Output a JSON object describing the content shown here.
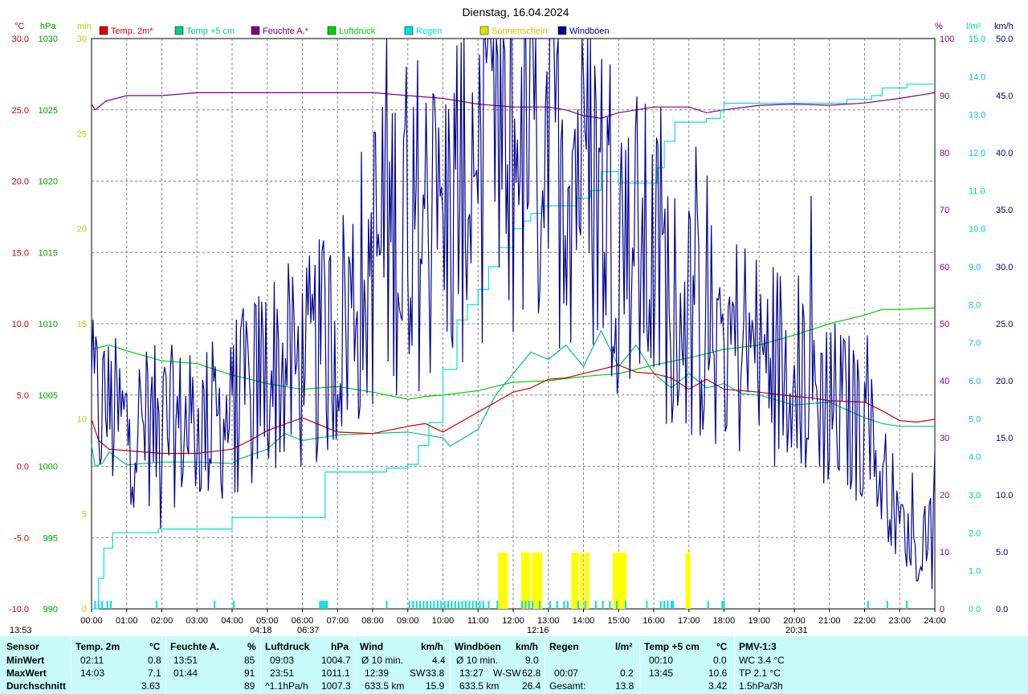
{
  "chart_data": {
    "type": "line",
    "title": "Dienstag, 16.04.2024",
    "x_ticks": [
      "00:00",
      "01:00",
      "02:00",
      "03:00",
      "04:00",
      "05:00",
      "06:00",
      "07:00",
      "08:00",
      "09:00",
      "10:00",
      "11:00",
      "12:00",
      "13:00",
      "14:00",
      "15:00",
      "16:00",
      "17:00",
      "18:00",
      "19:00",
      "20:00",
      "21:00",
      "22:00",
      "23:00",
      "24:00"
    ],
    "xlim_hours": [
      0,
      24
    ],
    "grid": true,
    "axes": {
      "temp": {
        "unit": "°C",
        "range": [
          -10,
          30
        ],
        "ticks": [
          "30.0",
          "25.0",
          "20.0",
          "15.0",
          "10.0",
          "5.0",
          "0.0",
          "-5.0",
          "-10.0"
        ],
        "color": "#d00000"
      },
      "pressure": {
        "unit": "hPa",
        "range": [
          990,
          1030
        ],
        "ticks": [
          "1030",
          "1025",
          "1020",
          "1015",
          "1010",
          "1005",
          "1000",
          "995",
          "990"
        ],
        "color": "#00a000"
      },
      "sunshine": {
        "unit": "min",
        "range": [
          0,
          30
        ],
        "ticks": [
          "30",
          "25",
          "20",
          "15",
          "10",
          "5",
          "0"
        ],
        "color": "#c8c800"
      },
      "humidity": {
        "unit": "%",
        "range": [
          0,
          100
        ],
        "ticks": [
          "100",
          "90",
          "80",
          "70",
          "60",
          "50",
          "40",
          "30",
          "20",
          "10",
          "0"
        ],
        "color": "#800080"
      },
      "rain": {
        "unit": "l/m²",
        "range": [
          0,
          15
        ],
        "ticks": [
          "15.0",
          "14.0",
          "13.0",
          "12.0",
          "11.0",
          "10.0",
          "9.0",
          "8.0",
          "7.0",
          "6.0",
          "5.0",
          "4.0",
          "3.0",
          "2.0",
          "1.0",
          "0.0"
        ],
        "color": "#00c8c8"
      },
      "wind": {
        "unit": "km/h",
        "range": [
          0,
          50
        ],
        "ticks": [
          "50.0",
          "45.0",
          "40.0",
          "35.0",
          "30.0",
          "25.0",
          "20.0",
          "15.0",
          "10.0",
          "5.0",
          "0.0"
        ],
        "color": "#000080"
      }
    },
    "legend": [
      {
        "name": "Temp. 2m*",
        "color": "#e00000"
      },
      {
        "name": "Temp +5 cm",
        "color": "#00d080"
      },
      {
        "name": "Feuchte A.*",
        "color": "#800080"
      },
      {
        "name": "Luftdruck",
        "color": "#00d000"
      },
      {
        "name": "Regen",
        "color": "#00e0e0"
      },
      {
        "name": "Sonnenschein",
        "color": "#e0e000"
      },
      {
        "name": "Windböen",
        "color": "#000090"
      }
    ],
    "series": [
      {
        "name": "Temp. 2m*",
        "axis": "temp",
        "color": "#d00000",
        "x": [
          0,
          0.2,
          0.5,
          1,
          2,
          3,
          4,
          4.5,
          5,
          6,
          7,
          8,
          9,
          9.5,
          10,
          11,
          12,
          12.5,
          13,
          13.5,
          14,
          14.5,
          15,
          15.5,
          16,
          16.5,
          17,
          17.5,
          18,
          19,
          20,
          20.5,
          21,
          22,
          22.5,
          23,
          23.5,
          24
        ],
        "y": [
          3.3,
          1.8,
          1.2,
          1.1,
          0.9,
          0.9,
          1.2,
          1.8,
          2.5,
          3.4,
          2.4,
          2.3,
          2.8,
          3,
          2.4,
          3.8,
          5.2,
          5.5,
          6.1,
          6.2,
          6.5,
          6.8,
          7.1,
          6.6,
          6.5,
          6.2,
          5.4,
          6.1,
          5.4,
          5.2,
          4.9,
          4.8,
          4.6,
          4.5,
          3.9,
          3.2,
          3.1,
          3.3
        ]
      },
      {
        "name": "Temp +5 cm",
        "axis": "temp",
        "color": "#00c080",
        "x": [
          0,
          0.1,
          0.3,
          0.5,
          1,
          2,
          3,
          4,
          4.2,
          5,
          5.5,
          6,
          7,
          8,
          9,
          10,
          10.2,
          11,
          11.5,
          12,
          12.5,
          13,
          13.5,
          14,
          14.5,
          15,
          15.5,
          16,
          16.5,
          17,
          17.5,
          18,
          18.5,
          19,
          20,
          21,
          22,
          22.5,
          23,
          24
        ],
        "y": [
          1.5,
          0,
          0.2,
          1.0,
          0.1,
          0.3,
          0.3,
          0.2,
          0.5,
          1.2,
          2.3,
          1.8,
          2.2,
          2.3,
          2.4,
          2.0,
          1.4,
          2.6,
          5.0,
          6.5,
          8.0,
          7.5,
          8.5,
          7.0,
          9.5,
          7.0,
          8.5,
          6.5,
          5.5,
          6.5,
          5.5,
          5.8,
          5.1,
          5.0,
          4.3,
          4.5,
          3.4,
          3.0,
          2.8,
          2.8
        ]
      },
      {
        "name": "Feuchte A.*",
        "axis": "humidity",
        "color": "#800080",
        "x": [
          0,
          0.1,
          0.4,
          1,
          2,
          3,
          4,
          5,
          6,
          7,
          8,
          9,
          10,
          11,
          12,
          13,
          13.5,
          14,
          14.5,
          15,
          15.5,
          16,
          16.5,
          17,
          17.5,
          18,
          19,
          20,
          21,
          22,
          23,
          24
        ],
        "y": [
          88.5,
          87.5,
          89,
          90,
          90,
          90.5,
          90.5,
          90.5,
          90.5,
          90.5,
          90.5,
          90,
          89.5,
          88.5,
          88,
          88,
          87.5,
          86.5,
          86,
          87,
          87.5,
          88,
          88,
          88,
          87,
          87.5,
          88.3,
          88.5,
          88.3,
          88.7,
          89.5,
          90.5
        ]
      },
      {
        "name": "Luftdruck",
        "axis": "pressure",
        "color": "#00d000",
        "x": [
          0,
          0.5,
          1,
          2,
          3,
          4,
          5,
          6,
          7,
          8,
          9,
          9.5,
          10,
          11,
          12,
          13,
          14,
          15,
          16,
          17,
          18,
          19,
          20,
          21,
          22,
          22.5,
          23,
          24
        ],
        "y": [
          1008.2,
          1008.5,
          1008.1,
          1007.4,
          1007.2,
          1006.4,
          1005.8,
          1005.4,
          1005.6,
          1005.2,
          1004.7,
          1004.9,
          1005.0,
          1005.3,
          1005.9,
          1006.0,
          1006.3,
          1006.5,
          1007.1,
          1007.6,
          1008.2,
          1008.5,
          1009.2,
          1010.0,
          1010.6,
          1011.0,
          1011.0,
          1011.1
        ]
      },
      {
        "name": "Regen",
        "axis": "rain",
        "color": "#00e0e0",
        "step": true,
        "x": [
          0,
          0.2,
          0.35,
          0.6,
          1.9,
          4.0,
          6.5,
          6.65,
          8.0,
          8.4,
          9.0,
          9.3,
          9.6,
          10.0,
          10.4,
          10.7,
          11.0,
          11.3,
          11.6,
          12.0,
          12.3,
          12.5,
          12.8,
          13.1,
          13.5,
          13.8,
          14.2,
          14.5,
          15.0,
          15.8,
          16.1,
          16.3,
          16.6,
          17.0,
          17.5,
          17.9,
          18.0,
          20.5,
          21.0,
          21.5,
          22.0,
          22.2,
          22.5,
          23.2,
          24
        ],
        "y": [
          0,
          0.8,
          1.6,
          2.0,
          2.1,
          2.4,
          2.4,
          3.6,
          3.6,
          3.7,
          3.8,
          4.3,
          4.9,
          6.3,
          7.6,
          8.0,
          8.4,
          9.0,
          9.5,
          10.0,
          10.2,
          10.4,
          10.6,
          10.6,
          10.6,
          10.8,
          11.0,
          11.5,
          11.2,
          11.2,
          11.6,
          12.3,
          12.8,
          12.8,
          12.9,
          13.1,
          13.3,
          13.3,
          13.3,
          13.4,
          13.4,
          13.5,
          13.7,
          13.8,
          13.8
        ]
      },
      {
        "name": "Windböen",
        "axis": "wind",
        "color": "#000090",
        "noise": true,
        "x": [
          0,
          1,
          2,
          3,
          4,
          5,
          6,
          7,
          8,
          9,
          10,
          11,
          12,
          13,
          14,
          15,
          16,
          17,
          18,
          19,
          20,
          21,
          22,
          22.5,
          23,
          23.5,
          24
        ],
        "y": [
          18,
          16,
          16,
          16,
          17,
          21,
          21,
          24,
          31,
          35,
          33,
          42,
          40,
          42,
          40,
          34,
          30,
          26,
          24,
          22,
          21,
          18,
          16,
          12,
          8,
          4,
          10
        ]
      }
    ],
    "sun_bars_hours": [
      11.62,
      11.68,
      11.75,
      11.8,
      12.27,
      12.32,
      12.38,
      12.45,
      12.58,
      12.65,
      12.72,
      12.78,
      13.7,
      13.75,
      13.82,
      13.95,
      14.08,
      14.12,
      14.88,
      14.95,
      15.0,
      15.05,
      15.12,
      15.18,
      16.95,
      17.0
    ],
    "rain_ticks_hours": [
      0.1,
      0.2,
      0.3,
      0.45,
      0.55,
      1.85,
      3.5,
      4.05,
      6.5,
      6.55,
      6.6,
      6.65,
      6.7,
      8.4,
      9.05,
      9.15,
      9.25,
      9.35,
      9.45,
      9.55,
      9.65,
      9.75,
      9.85,
      9.95,
      10.05,
      10.15,
      10.25,
      10.35,
      10.45,
      10.55,
      10.65,
      10.75,
      10.85,
      10.95,
      11.05,
      11.15,
      11.3,
      11.55,
      12.25,
      12.35,
      12.45,
      12.55,
      12.75,
      13.05,
      13.25,
      13.45,
      13.55,
      13.85,
      14.05,
      14.35,
      14.55,
      14.75,
      14.95,
      15.2,
      15.8,
      16.2,
      16.3,
      16.4,
      16.5,
      16.55,
      17.55,
      17.95,
      18.0,
      22.1,
      22.65,
      23.2
    ]
  },
  "markers": {
    "top_left_time": "13:53",
    "sunrise": "04:18",
    "dawn": "06:37",
    "noon": "12:16",
    "sunset": "20:31"
  },
  "stats": {
    "sensor": {
      "header": "Sensor",
      "rows": [
        "MinWert",
        "MaxWert",
        "Durchschnitt"
      ]
    },
    "temp2m": {
      "header": "Temp. 2m",
      "unit": "°C",
      "rows": [
        [
          "02:11",
          "0.8"
        ],
        [
          "14:03",
          "7.1"
        ],
        [
          "",
          "3.63"
        ]
      ]
    },
    "feuchte": {
      "header": "Feuchte A.",
      "unit": "%",
      "rows": [
        [
          "13:51",
          "85"
        ],
        [
          "01:44",
          "91"
        ],
        [
          "",
          "89"
        ]
      ]
    },
    "luft": {
      "header": "Luftdruck",
      "unit": "hPa",
      "rows": [
        [
          "09:03",
          "1004.7"
        ],
        [
          "23:51",
          "1011.1"
        ],
        [
          "^1.1hPa/h",
          "1007.3"
        ]
      ]
    },
    "wind": {
      "header": "Wind",
      "unit": "km/h",
      "rows": [
        [
          "Ø 10 min.",
          "",
          "4.4"
        ],
        [
          "12:39",
          "SW",
          "33.8"
        ],
        [
          "633.5 km",
          "",
          "15.9"
        ]
      ]
    },
    "boeen": {
      "header": "Windböen",
      "unit": "km/h",
      "rows": [
        [
          "Ø 10 min.",
          "",
          "9.0"
        ],
        [
          "13:27",
          "W-SW",
          "62.8"
        ],
        [
          "633.5 km",
          "",
          "26.4"
        ]
      ]
    },
    "regen": {
      "header": "Regen",
      "unit": "l/m²",
      "rows": [
        [
          "",
          ""
        ],
        [
          "00:07",
          "0.2"
        ],
        [
          "Gesamt:",
          "13.8"
        ]
      ]
    },
    "temp5": {
      "header": "Temp +5 cm",
      "unit": "°C",
      "rows": [
        [
          "00:10",
          "0.0"
        ],
        [
          "13:45",
          "10.6"
        ],
        [
          "",
          "3.42"
        ]
      ]
    },
    "pmv": {
      "header": "PMV-1:3",
      "rows": [
        "WC 3.4 °C",
        "TP 2.1 °C",
        "1.5hPa/3h"
      ]
    }
  }
}
